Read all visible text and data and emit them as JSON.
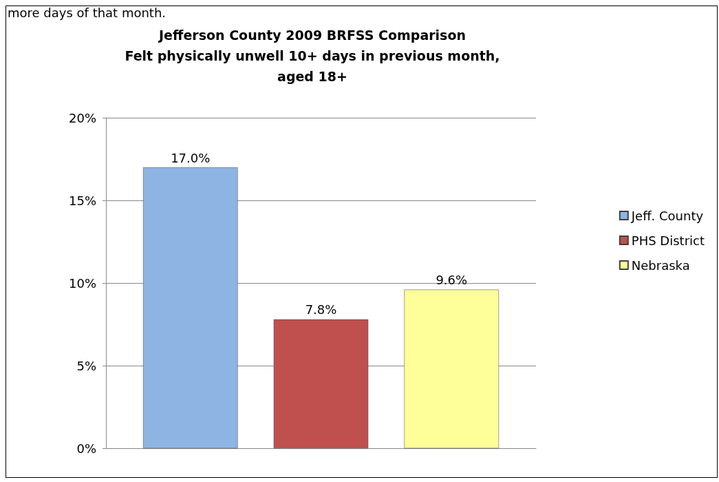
{
  "chart_data": {
    "type": "bar",
    "title": "Jefferson County 2009 BRFSS Comparison\nFelt physically unwell 10+ days in previous month,\naged 18+",
    "annotations": [
      "more days of that month."
    ],
    "categories": [
      null
    ],
    "series": [
      {
        "name": "Jeff. County",
        "color": "#8eb4e3",
        "values": [
          17.0
        ],
        "value_labels": [
          "17.0%"
        ]
      },
      {
        "name": "PHS District",
        "color": "#c0504d",
        "values": [
          7.8
        ],
        "value_labels": [
          "7.8%"
        ]
      },
      {
        "name": "Nebraska",
        "color": "#ffff99",
        "values": [
          9.6
        ],
        "value_labels": [
          "9.6%"
        ]
      }
    ],
    "ylim": [
      0,
      20
    ],
    "yticks": [
      {
        "value": 0,
        "label": "0%"
      },
      {
        "value": 5,
        "label": "5%"
      },
      {
        "value": 10,
        "label": "10%"
      },
      {
        "value": 15,
        "label": "15%"
      },
      {
        "value": 20,
        "label": "20%"
      }
    ],
    "grid": "y",
    "legend": "right"
  }
}
